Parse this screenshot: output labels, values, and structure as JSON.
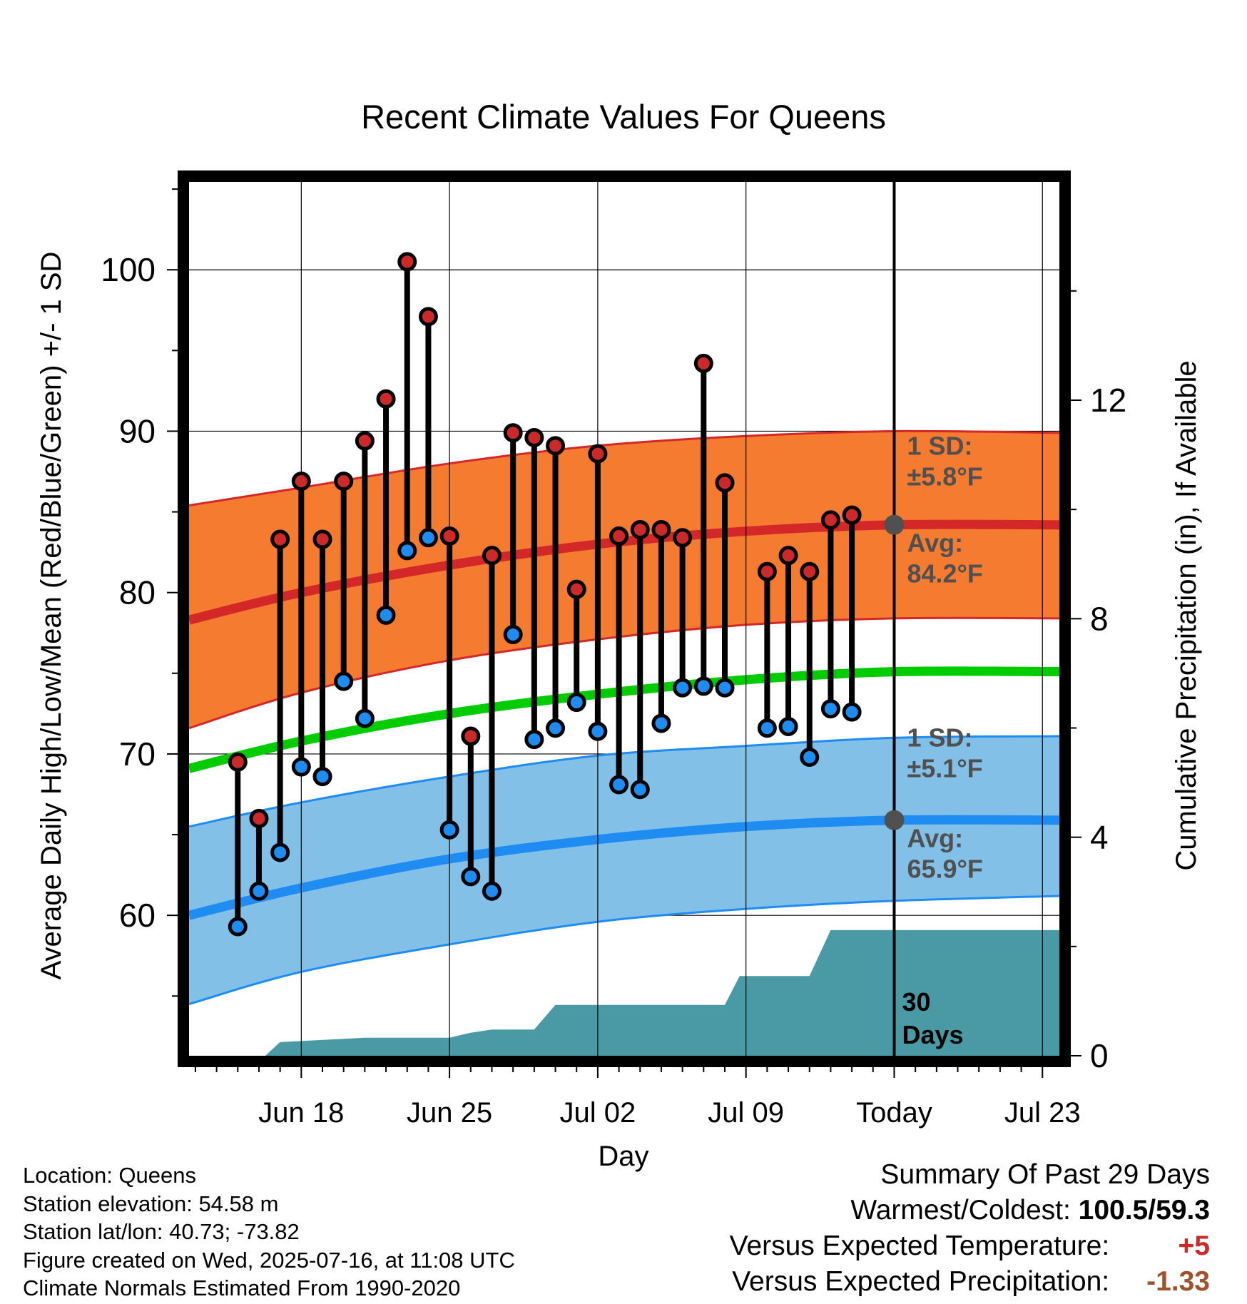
{
  "chart_data": {
    "type": "line",
    "title": "Recent Climate Values For Queens",
    "xlabel": "Day",
    "ylabel": "Average Daily High/Low/Mean (Red/Blue/Green) +/- 1 SD",
    "y2label": "Cumulative Precipitation (in), If Available",
    "ylim": [
      51.3,
      105.8
    ],
    "y_ticks": [
      "60",
      "70",
      "80",
      "90",
      "100"
    ],
    "y2lim": [
      0,
      16.1
    ],
    "y2_ticks": [
      "0",
      "4",
      "8",
      "12"
    ],
    "xlim": [
      -3.3,
      37.8
    ],
    "x_ticks": [
      {
        "day": 2,
        "label": "Jun 18"
      },
      {
        "day": 9,
        "label": "Jun 25"
      },
      {
        "day": 16,
        "label": "Jul 02"
      },
      {
        "day": 23,
        "label": "Jul 09"
      },
      {
        "day": 30,
        "label": "Today"
      },
      {
        "day": 37,
        "label": "Jul 23"
      }
    ],
    "grid": true,
    "days": [
      -1,
      0,
      1,
      2,
      3,
      4,
      5,
      6,
      7,
      8,
      9,
      10,
      11,
      12,
      13,
      14,
      15,
      16,
      17,
      18,
      19,
      20,
      21,
      22,
      23,
      24,
      25,
      26,
      27,
      28,
      29
    ],
    "highs": [
      69.5,
      66,
      83.3,
      86.9,
      83.3,
      86.9,
      89.4,
      92,
      100.5,
      97.1,
      83.5,
      71.1,
      82.3,
      89.9,
      89.6,
      89.1,
      80.2,
      88.6,
      83.5,
      83.9,
      83.9,
      83.4,
      94.2,
      86.8,
      null,
      81.3,
      82.3,
      81.3,
      84.5,
      84.8,
      null
    ],
    "lows": [
      59.3,
      61.5,
      63.9,
      69.2,
      68.6,
      74.5,
      72.2,
      78.6,
      82.6,
      83.4,
      65.3,
      62.4,
      61.5,
      77.4,
      70.9,
      71.6,
      73.2,
      71.4,
      68.1,
      67.8,
      71.9,
      74.1,
      74.2,
      74.1,
      null,
      71.6,
      71.7,
      69.8,
      72.8,
      72.6,
      null
    ],
    "normal_high": {
      "days": [
        -3.3,
        2,
        9,
        16,
        23,
        30,
        37.8
      ],
      "avg": [
        78.3,
        80.0,
        81.7,
        83.0,
        83.8,
        84.2,
        84.2
      ],
      "upper": [
        85.4,
        86.5,
        88.0,
        89.1,
        89.7,
        90.0,
        89.9
      ],
      "lower": [
        71.6,
        73.8,
        75.8,
        77.1,
        78.0,
        78.4,
        78.4
      ]
    },
    "normal_mean": {
      "days": [
        -3.3,
        2,
        9,
        16,
        23,
        30,
        37.8
      ],
      "avg": [
        69.1,
        70.8,
        72.5,
        73.7,
        74.6,
        75.1,
        75.1
      ]
    },
    "normal_low": {
      "days": [
        -3.3,
        2,
        9,
        16,
        23,
        30,
        37.8
      ],
      "avg": [
        60.0,
        61.7,
        63.5,
        64.7,
        65.5,
        65.9,
        65.9
      ],
      "upper": [
        65.5,
        67.0,
        68.6,
        69.9,
        70.5,
        71.0,
        71.1
      ],
      "lower": [
        54.5,
        56.5,
        58.2,
        59.6,
        60.4,
        60.9,
        61.2
      ]
    },
    "precip_cumulative": {
      "days": [
        -3.3,
        0.3,
        1,
        5,
        9,
        10,
        11,
        13,
        14,
        15,
        22,
        22.7,
        26,
        27,
        37.8
      ],
      "values": [
        0,
        0,
        0.25,
        0.33,
        0.33,
        0.42,
        0.48,
        0.48,
        0.93,
        0.93,
        0.93,
        1.46,
        1.46,
        2.3,
        2.3
      ]
    },
    "annotations": {
      "high_sd": "1 SD:",
      "high_sd_value": "±5.8°F",
      "high_avg": "Avg:",
      "high_avg_value": "84.2°F",
      "low_sd": "1 SD:",
      "low_sd_value": "±5.1°F",
      "low_avg": "Avg:",
      "low_avg_value": "65.9°F",
      "days_number": "30",
      "days_word": "Days"
    },
    "colors": {
      "high_band": "#f47b30",
      "high_line": "#d42828",
      "low_band": "#82c0e8",
      "low_line": "#1e8cf0",
      "mean_line": "#00cc00",
      "precip": "#4a9aa5",
      "high_marker": "#cc2a2a",
      "low_marker": "#1e8cf0",
      "today_marker": "#505050",
      "annotation_text": "#505050"
    }
  },
  "station_info": {
    "location": "Location: Queens",
    "elevation": "Station elevation: 54.58 m",
    "latlon": "Station lat/lon: 40.73; -73.82",
    "created": "Figure created on Wed, 2025-07-16, at 11:08 UTC",
    "normals": "Climate Normals Estimated From 1990-2020"
  },
  "summary": {
    "title": "Summary Of Past 29 Days",
    "warm_cold_label": "Warmest/Coldest:",
    "warm_cold_value": "100.5/59.3",
    "temp_label": "Versus Expected Temperature:",
    "temp_value": "+5",
    "precip_label": "Versus Expected Precipitation:",
    "precip_value": "-1.33"
  }
}
